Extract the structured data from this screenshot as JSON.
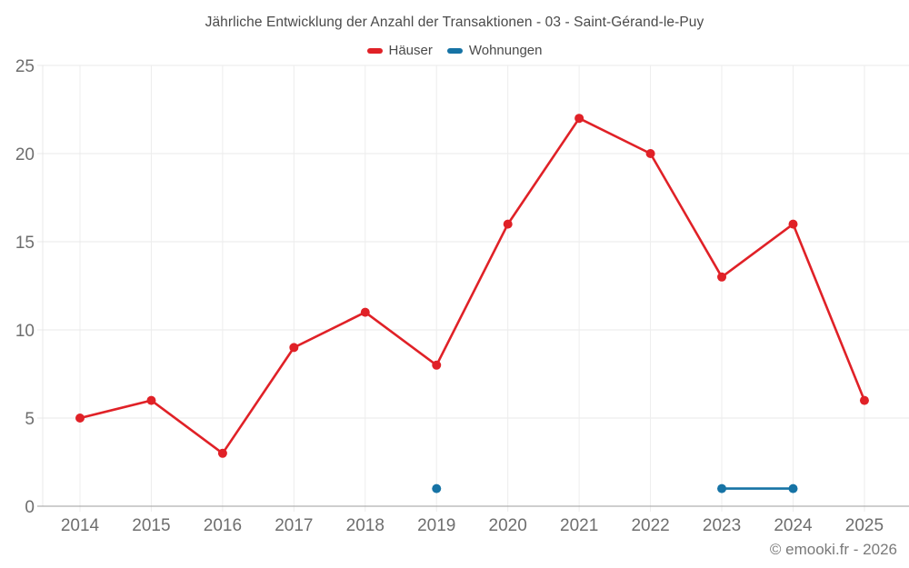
{
  "header": {
    "title": "Jährliche Entwicklung der Anzahl der Transaktionen - 03 - Saint-Gérand-le-Puy"
  },
  "footer": {
    "credit": "© emooki.fr - 2026"
  },
  "chart_data": {
    "type": "line",
    "title": "Jährliche Entwicklung der Anzahl der Transaktionen - 03 - Saint-Gérand-le-Puy",
    "categories": [
      "2014",
      "2015",
      "2016",
      "2017",
      "2018",
      "2019",
      "2020",
      "2021",
      "2022",
      "2023",
      "2024",
      "2025"
    ],
    "series": [
      {
        "name": "Häuser",
        "color": "#e02127",
        "values": [
          5,
          6,
          3,
          9,
          11,
          8,
          16,
          22,
          20,
          13,
          16,
          6
        ]
      },
      {
        "name": "Wohnungen",
        "color": "#1673a5",
        "values": [
          null,
          null,
          null,
          null,
          null,
          1,
          null,
          null,
          null,
          1,
          1,
          null
        ]
      }
    ],
    "xlabel": "",
    "ylabel": "",
    "ylim": [
      0,
      25
    ],
    "y_ticks": [
      0,
      5,
      10,
      15,
      20,
      25
    ],
    "grid": true,
    "legend_position": "top",
    "colors": {
      "grid_line": "#e9e9e9",
      "axis_line": "#9e9e9e",
      "tick_label": "#6e6e6e",
      "title_text": "#4a4a4a"
    }
  }
}
